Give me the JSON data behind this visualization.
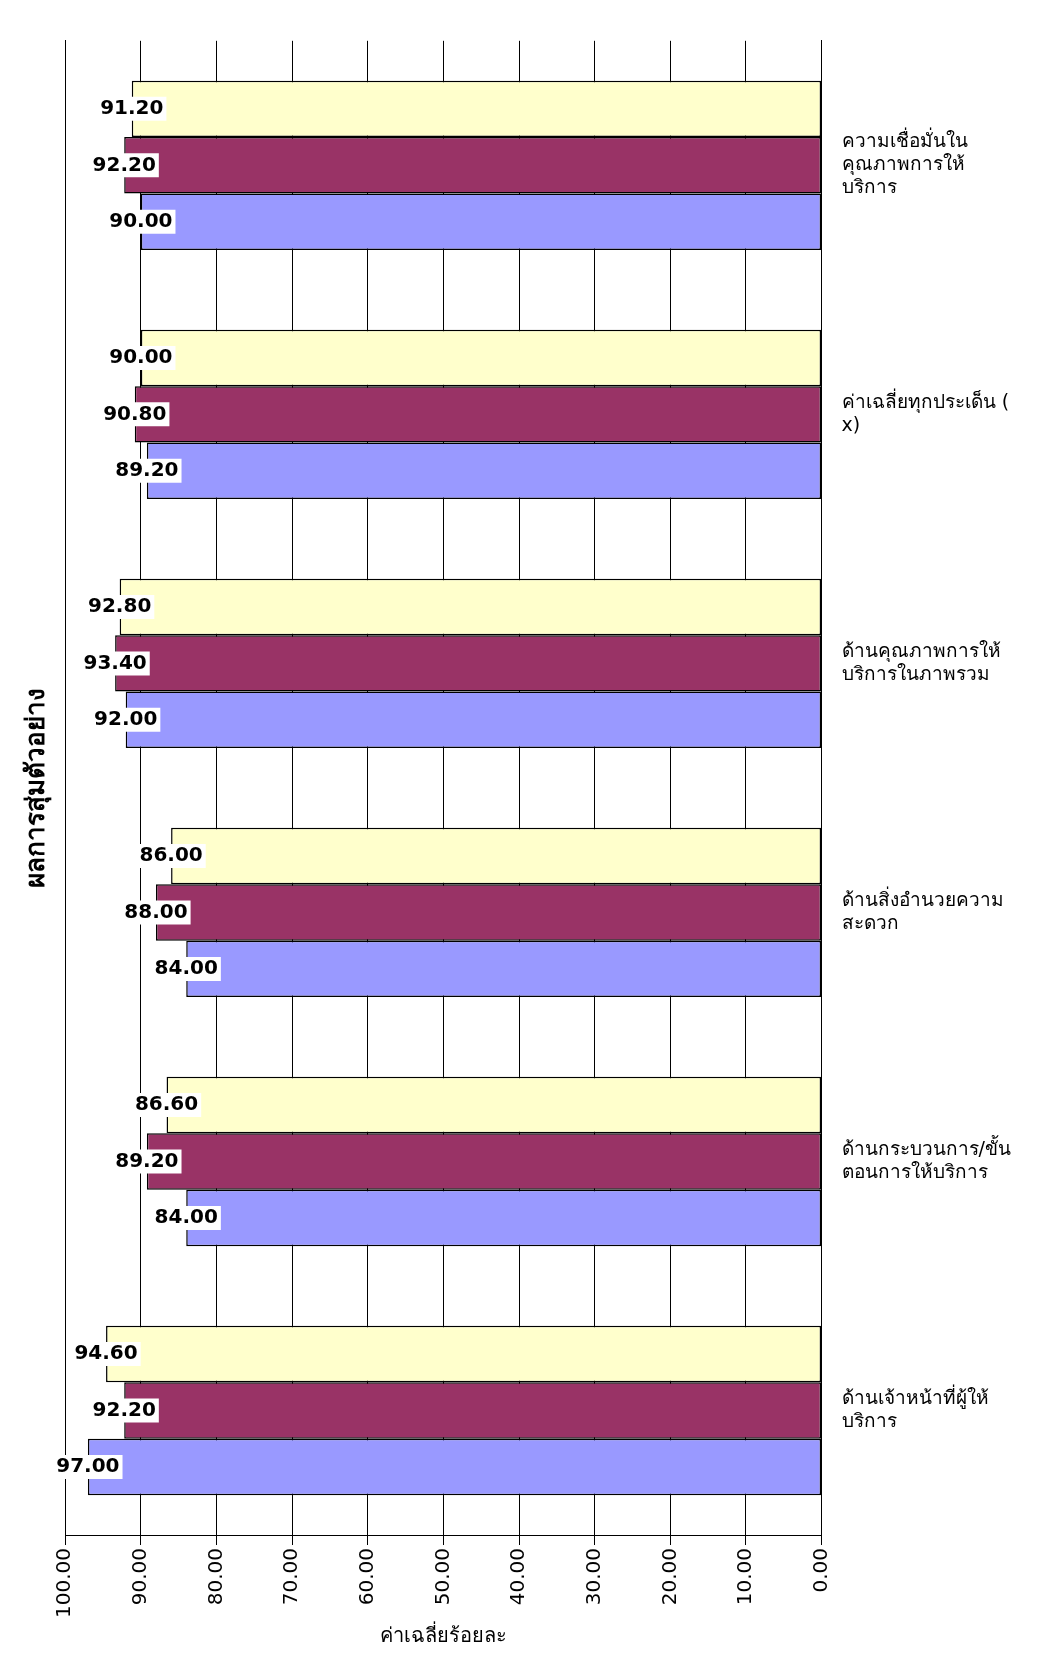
{
  "chart_data": {
    "type": "bar",
    "orientation": "horizontal",
    "xlabel": "ค่าเฉลี่ยร้อยละ",
    "ylabel": "ผลการสุ่มตัวอย่าง",
    "categories": [
      "ความเชื่อมั่นในคุณภาพการให้บริการ",
      "ค่าเฉลี่ยทุกประเด็น (x)",
      "ด้านคุณภาพการให้บริการในภาพรวม",
      "ด้านสิ่งอำนวยความสะดวก",
      "ด้านกระบวนการ/ขั้นตอนการให้บริการ",
      "ด้านเจ้าหน้าที่ผู้ให้บริการ"
    ],
    "series": [
      {
        "color": "#ffffcc",
        "values": [
          91.2,
          90.0,
          92.8,
          86.0,
          86.6,
          94.6
        ],
        "value_labels": [
          "91.20",
          "90.00",
          "92.80",
          "86.00",
          "86.60",
          "94.60"
        ]
      },
      {
        "color": "#993366",
        "values": [
          92.2,
          90.8,
          93.4,
          88.0,
          89.2,
          92.2
        ],
        "value_labels": [
          "92.20",
          "90.80",
          "93.40",
          "88.00",
          "89.20",
          "92.20"
        ]
      },
      {
        "color": "#9999ff",
        "values": [
          90.0,
          89.2,
          92.0,
          84.0,
          84.0,
          97.0
        ],
        "value_labels": [
          "90.00",
          "89.20",
          "92.00",
          "84.00",
          "84.00",
          "97.00"
        ]
      }
    ],
    "xlim": [
      100,
      0
    ],
    "xticks": [
      {
        "value": 100,
        "label": "100.00"
      },
      {
        "value": 90,
        "label": "90.00"
      },
      {
        "value": 80,
        "label": "80.00"
      },
      {
        "value": 70,
        "label": "70.00"
      },
      {
        "value": 60,
        "label": "60.00"
      },
      {
        "value": 50,
        "label": "50.00"
      },
      {
        "value": 40,
        "label": "40.00"
      },
      {
        "value": 30,
        "label": "30.00"
      },
      {
        "value": 20,
        "label": "20.00"
      },
      {
        "value": 10,
        "label": "10.00"
      },
      {
        "value": 0,
        "label": "0.00"
      }
    ],
    "grid": "x",
    "legend": false
  }
}
